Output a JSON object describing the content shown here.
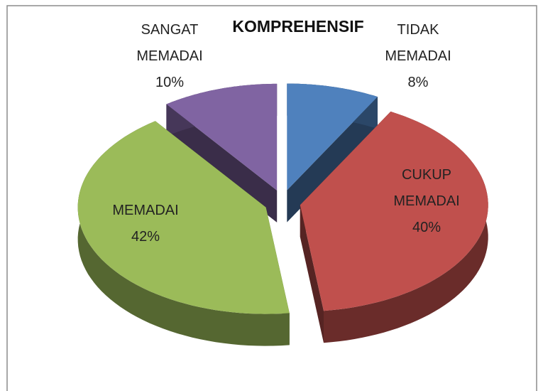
{
  "chart_data": {
    "type": "pie",
    "title": "KOMPREHENSIF",
    "categories": [
      "TIDAK MEMADAI",
      "CUKUP MEMADAI",
      "MEMADAI",
      "SANGAT MEMADAI"
    ],
    "values": [
      8,
      40,
      42,
      10
    ],
    "value_labels": [
      "8%",
      "40%",
      "42%",
      "10%"
    ],
    "colors": [
      "#4f81bd",
      "#c0504d",
      "#9bbb59",
      "#8064a2"
    ]
  }
}
